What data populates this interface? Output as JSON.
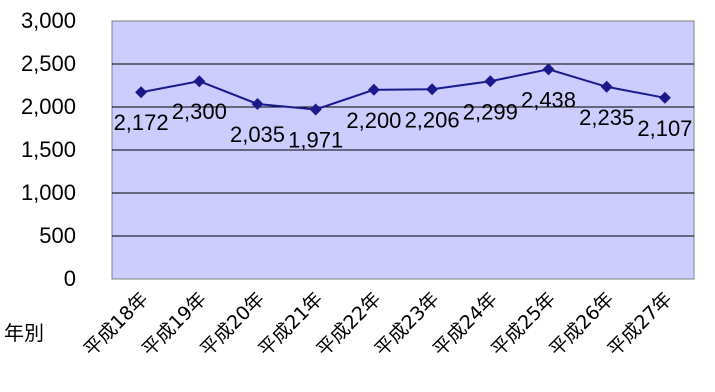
{
  "chart_data": {
    "type": "line",
    "xlabel": "年別",
    "ylabel": "",
    "title": "",
    "ylim": [
      0,
      3000
    ],
    "yticks": [
      0,
      500,
      1000,
      1500,
      2000,
      2500,
      3000
    ],
    "ytick_labels": [
      "0",
      "500",
      "1,000",
      "1,500",
      "2,000",
      "2,500",
      "3,000"
    ],
    "categories": [
      "平成18年",
      "平成19年",
      "平成20年",
      "平成21年",
      "平成22年",
      "平成23年",
      "平成24年",
      "平成25年",
      "平成26年",
      "平成27年"
    ],
    "series": [
      {
        "values": [
          2172,
          2300,
          2035,
          1971,
          2200,
          2206,
          2299,
          2438,
          2235,
          2107
        ],
        "labels": [
          "2,172",
          "2,300",
          "2,035",
          "1,971",
          "2,200",
          "2,206",
          "2,299",
          "2,438",
          "2,235",
          "2,107"
        ],
        "color": "#1a1a8c",
        "marker": "diamond"
      }
    ],
    "grid": true,
    "legend": "none",
    "plot_background": "#ccccff"
  }
}
